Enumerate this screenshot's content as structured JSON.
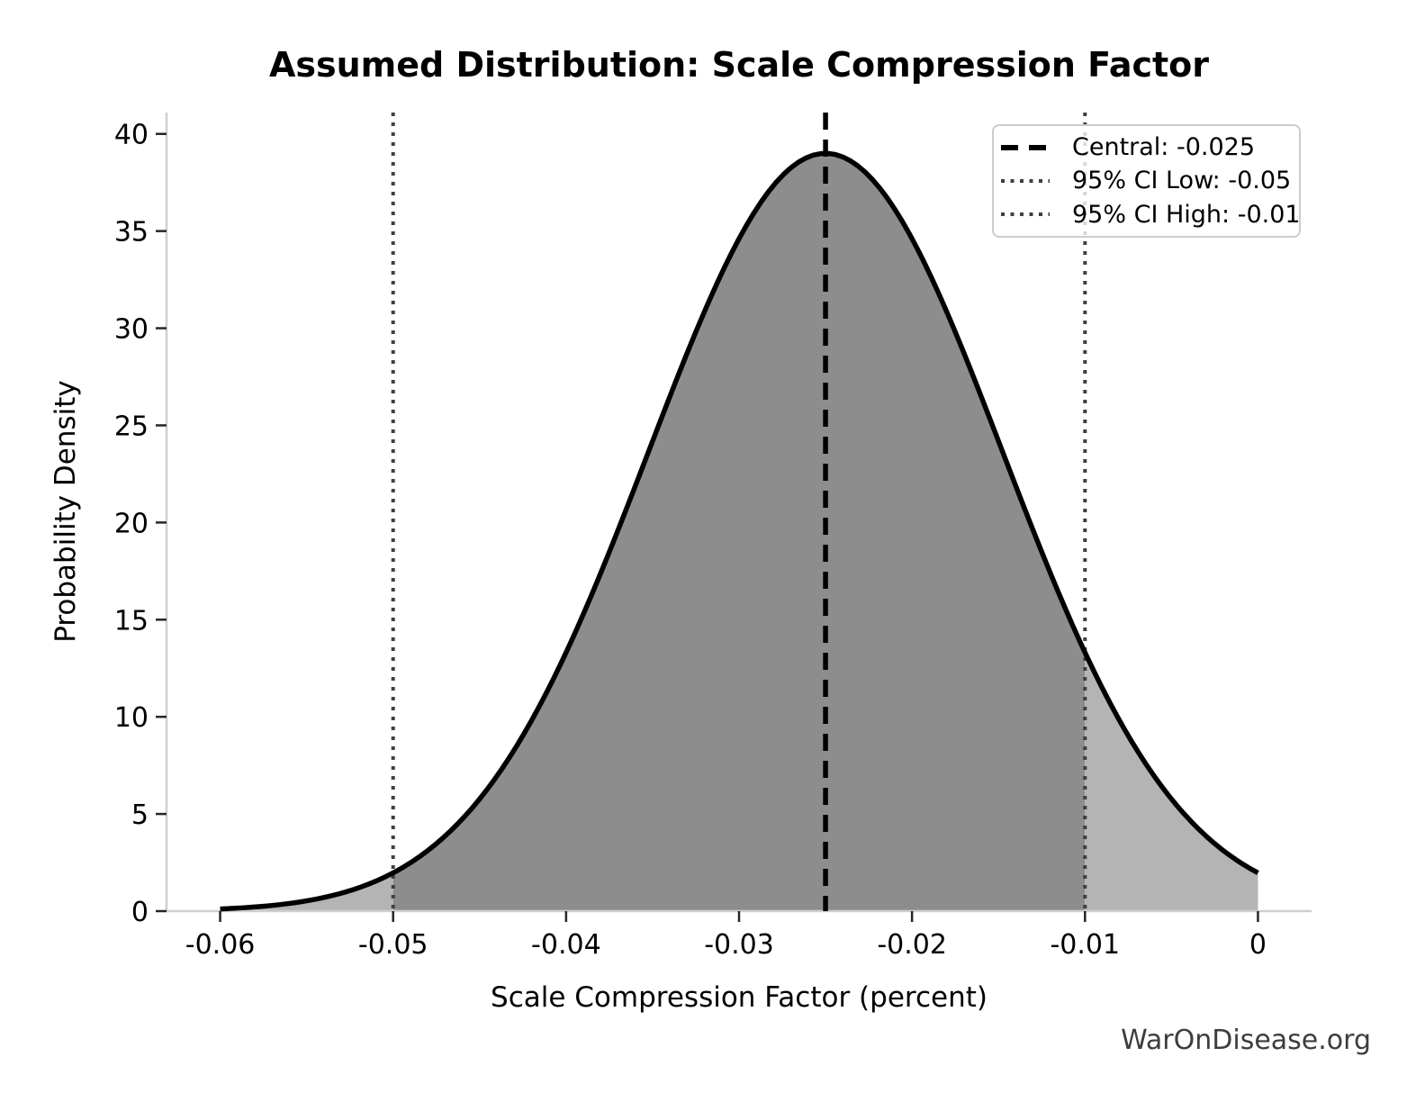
{
  "figure": {
    "watermark": "WarOnDisease.org"
  },
  "legend": {
    "entries": [
      {
        "label": "Central: -0.025",
        "style": "dashed",
        "color": "#000000"
      },
      {
        "label": "95% CI Low: -0.05",
        "style": "dotted",
        "color": "#3f3f3f"
      },
      {
        "label": "95% CI High: -0.01",
        "style": "dotted",
        "color": "#3f3f3f"
      }
    ]
  },
  "chart_data": {
    "type": "area",
    "title": "Assumed Distribution: Scale Compression Factor",
    "xlabel": "Scale Compression Factor (percent)",
    "ylabel": "Probability Density",
    "xlim": [
      -0.0631,
      0.0031
    ],
    "ylim": [
      0,
      41.1
    ],
    "grid": false,
    "legend_position": "upper right",
    "x_ticks": [
      -0.06,
      -0.05,
      -0.04,
      -0.03,
      -0.02,
      -0.01,
      0
    ],
    "x_tick_labels": [
      "-0.06",
      "-0.05",
      "-0.04",
      "-0.03",
      "-0.02",
      "-0.01",
      "0"
    ],
    "y_ticks": [
      0,
      5,
      10,
      15,
      20,
      25,
      30,
      35,
      40
    ],
    "y_tick_labels": [
      "0",
      "5",
      "10",
      "15",
      "20",
      "25",
      "30",
      "35",
      "40"
    ],
    "distribution": {
      "shape": "normal",
      "mean": -0.025,
      "sigma": 0.01023,
      "peak_density": 39.0,
      "x_min": -0.06,
      "x_max": 0.0
    },
    "sampled_points": {
      "x": [
        -0.06,
        -0.055,
        -0.05,
        -0.045,
        -0.04,
        -0.035,
        -0.03,
        -0.025,
        -0.02,
        -0.015,
        -0.01,
        -0.005,
        0
      ],
      "density": [
        0.11,
        0.53,
        1.96,
        5.77,
        13.31,
        24.19,
        34.61,
        39.0,
        34.61,
        24.19,
        13.31,
        5.77,
        1.96
      ]
    },
    "markers": {
      "central": {
        "value": -0.025,
        "label": "Central: -0.025"
      },
      "ci_low": {
        "value": -0.05,
        "label": "95% CI Low: -0.05"
      },
      "ci_high": {
        "value": -0.01,
        "label": "95% CI High: -0.01"
      }
    },
    "colors": {
      "curve": "#000000",
      "ci_fill": "#8d8d8d",
      "tail_fill": "#b4b4b4",
      "marker_central": "#000000",
      "marker_ci": "#3f3f3f",
      "spine": "#cfcfcf",
      "tick": "#262626",
      "text": "#000000"
    }
  }
}
